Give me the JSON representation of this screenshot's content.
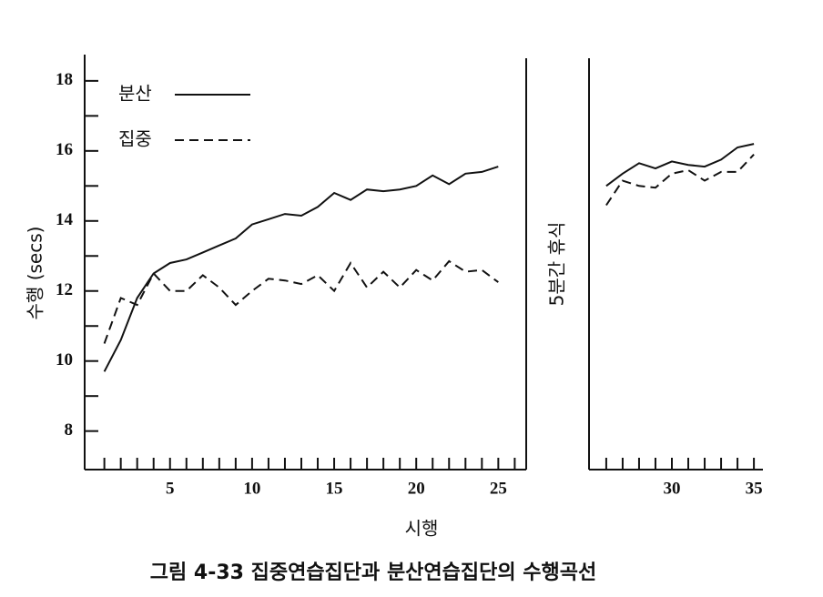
{
  "chart_data": {
    "type": "line",
    "ylabel": "수행 (secs)",
    "xlabel": "시행",
    "caption": "그림 4-33 집중연습집단과 분산연습집단의 수행곡선",
    "break_label": "5분간 휴식",
    "color": "#111111",
    "legend": [
      {
        "name": "분산",
        "dash": "none"
      },
      {
        "name": "집중",
        "dash": "10 6"
      }
    ],
    "ylim": [
      6.9,
      18.75
    ],
    "yticks": [
      8,
      10,
      12,
      14,
      16,
      18
    ],
    "yminor": [
      9,
      11,
      13,
      15,
      17
    ],
    "segments": [
      {
        "xlim": [
          -0.2,
          26.7
        ],
        "xticks": [
          5,
          10,
          15,
          20,
          25
        ],
        "xminor": [
          1,
          2,
          3,
          4,
          6,
          7,
          8,
          9,
          11,
          12,
          13,
          14,
          16,
          17,
          18,
          19,
          21,
          22,
          23,
          24,
          26
        ],
        "x": [
          1,
          2,
          3,
          4,
          5,
          6,
          7,
          8,
          9,
          10,
          11,
          12,
          13,
          14,
          15,
          16,
          17,
          18,
          19,
          20,
          21,
          22,
          23,
          24,
          25
        ],
        "series": [
          {
            "values": [
              9.7,
              10.6,
              11.8,
              12.5,
              12.8,
              12.9,
              13.1,
              13.3,
              13.5,
              13.9,
              14.05,
              14.2,
              14.15,
              14.4,
              14.8,
              14.6,
              14.9,
              14.85,
              14.9,
              15.0,
              15.3,
              15.05,
              15.35,
              15.4,
              15.55
            ]
          },
          {
            "values": [
              10.5,
              11.8,
              11.6,
              12.5,
              12.0,
              12.0,
              12.45,
              12.1,
              11.6,
              12.0,
              12.35,
              12.3,
              12.2,
              12.45,
              12.0,
              12.8,
              12.1,
              12.55,
              12.1,
              12.6,
              12.3,
              12.85,
              12.55,
              12.6,
              12.25
            ]
          }
        ]
      },
      {
        "xlim": [
          24.95,
          35.55
        ],
        "xticks": [
          30,
          35
        ],
        "xminor": [
          26,
          27,
          28,
          29,
          31,
          32,
          33,
          34
        ],
        "x": [
          26,
          27,
          28,
          29,
          30,
          31,
          32,
          33,
          34,
          35
        ],
        "series": [
          {
            "values": [
              15.0,
              15.35,
              15.65,
              15.5,
              15.7,
              15.6,
              15.55,
              15.75,
              16.1,
              16.2
            ]
          },
          {
            "values": [
              14.45,
              15.15,
              15.0,
              14.95,
              15.35,
              15.45,
              15.15,
              15.4,
              15.4,
              15.9
            ]
          }
        ]
      }
    ]
  }
}
